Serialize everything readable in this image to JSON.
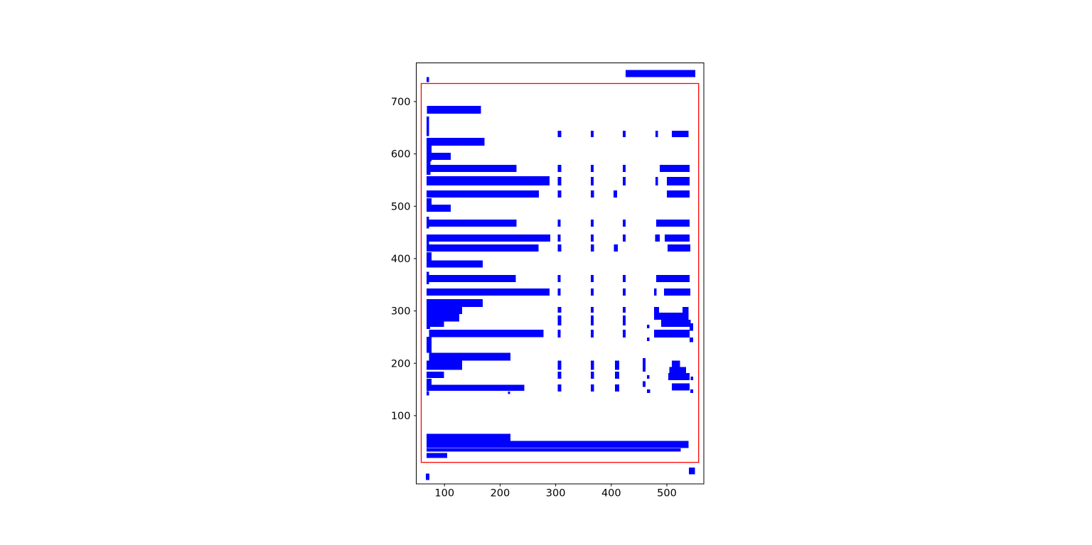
{
  "figure": {
    "background": "#ffffff",
    "bar_color": "#0000ff",
    "region_box_color": "#ff0000",
    "frame_color": "#000000",
    "tick_label_color": "#000000"
  },
  "chart_data": {
    "type": "rect",
    "description": "matplotlib-style plot of blue filled rectangles (layout bounding boxes) with one red unfilled region rectangle",
    "title": "",
    "xlabel": "",
    "ylabel": "",
    "grid": false,
    "legend": false,
    "xlim": [
      49.2,
      566.5
    ],
    "ylim": [
      -30.4,
      774.2
    ],
    "x_ticks": [
      100,
      200,
      300,
      400,
      500
    ],
    "y_ticks": [
      100,
      200,
      300,
      400,
      500,
      600,
      700
    ],
    "red_box": [
      58.1,
      10.8,
      557.1,
      734.6
    ],
    "blue_boxes": [
      [
        425.6,
        747.0,
        551.5,
        760.6
      ],
      [
        67.5,
        737.2,
        72.2,
        747.1
      ],
      [
        68.4,
        676.9,
        165.3,
        691.9
      ],
      [
        67.5,
        634.1,
        72.2,
        671.1
      ],
      [
        304.0,
        631.8,
        310.4,
        644.0
      ],
      [
        362.9,
        631.8,
        368.0,
        644.0
      ],
      [
        420.5,
        631.8,
        426.0,
        644.0
      ],
      [
        479.8,
        631.8,
        484.1,
        644.0
      ],
      [
        508.8,
        631.8,
        538.7,
        644.0
      ],
      [
        67.5,
        615.9,
        172.0,
        630.8
      ],
      [
        67.5,
        585.6,
        76.9,
        615.9
      ],
      [
        67.5,
        588.7,
        111.0,
        602.3
      ],
      [
        67.5,
        560.3,
        74.8,
        585.6
      ],
      [
        72.2,
        565.5,
        229.3,
        579.2
      ],
      [
        304.0,
        565.5,
        310.4,
        579.0
      ],
      [
        362.9,
        565.5,
        368.0,
        579.0
      ],
      [
        420.5,
        565.5,
        426.0,
        579.0
      ],
      [
        487.5,
        565.5,
        540.8,
        579.0
      ],
      [
        67.5,
        539.5,
        289.0,
        557.1
      ],
      [
        304.0,
        539.5,
        310.4,
        555.8
      ],
      [
        362.9,
        539.5,
        368.0,
        555.8
      ],
      [
        420.5,
        539.5,
        425.6,
        555.8
      ],
      [
        479.8,
        539.5,
        484.1,
        555.8
      ],
      [
        500.3,
        539.5,
        540.8,
        555.8
      ],
      [
        67.5,
        516.4,
        269.8,
        530.0
      ],
      [
        304.0,
        516.4,
        310.4,
        530.0
      ],
      [
        362.9,
        516.4,
        368.9,
        530.0
      ],
      [
        404.2,
        516.4,
        410.6,
        530.0
      ],
      [
        500.3,
        516.4,
        540.8,
        530.0
      ],
      [
        67.5,
        489.3,
        76.9,
        515.5
      ],
      [
        67.5,
        489.3,
        111.0,
        502.9
      ],
      [
        67.5,
        457.6,
        72.2,
        480.2
      ],
      [
        67.5,
        461.2,
        229.3,
        474.7
      ],
      [
        304.0,
        461.2,
        309.1,
        474.7
      ],
      [
        362.9,
        461.2,
        368.0,
        474.7
      ],
      [
        420.5,
        461.2,
        426.0,
        474.7
      ],
      [
        481.1,
        461.2,
        540.8,
        474.7
      ],
      [
        67.5,
        432.7,
        290.3,
        446.2
      ],
      [
        304.0,
        432.7,
        309.1,
        446.2
      ],
      [
        362.9,
        432.7,
        368.0,
        446.2
      ],
      [
        420.5,
        432.7,
        425.6,
        446.2
      ],
      [
        479.0,
        432.7,
        487.5,
        446.2
      ],
      [
        496.0,
        432.7,
        540.8,
        446.2
      ],
      [
        67.5,
        413.7,
        72.2,
        432.7
      ],
      [
        67.5,
        413.7,
        269.0,
        427.2
      ],
      [
        304.0,
        413.7,
        310.4,
        427.2
      ],
      [
        362.9,
        413.7,
        368.9,
        427.2
      ],
      [
        405.0,
        413.7,
        412.0,
        427.2
      ],
      [
        501.2,
        413.7,
        542.1,
        427.2
      ],
      [
        67.5,
        383.0,
        76.9,
        412.3
      ],
      [
        67.5,
        383.0,
        168.6,
        396.6
      ],
      [
        67.5,
        351.3,
        72.2,
        374.9
      ],
      [
        67.5,
        354.9,
        228.1,
        368.5
      ],
      [
        304.0,
        354.9,
        309.1,
        368.5
      ],
      [
        362.9,
        354.9,
        368.0,
        368.5
      ],
      [
        420.5,
        354.9,
        426.0,
        368.5
      ],
      [
        481.1,
        354.9,
        540.8,
        368.5
      ],
      [
        67.5,
        329.6,
        289.0,
        343.1
      ],
      [
        304.0,
        329.6,
        309.1,
        343.1
      ],
      [
        362.9,
        329.6,
        368.0,
        343.1
      ],
      [
        420.5,
        329.6,
        425.6,
        343.1
      ],
      [
        476.8,
        329.6,
        481.1,
        343.1
      ],
      [
        495.1,
        329.6,
        542.1,
        343.1
      ],
      [
        67.5,
        307.5,
        168.6,
        322.8
      ],
      [
        67.5,
        294.0,
        131.5,
        307.5
      ],
      [
        304.0,
        296.6,
        310.4,
        307.9
      ],
      [
        362.9,
        296.6,
        368.0,
        307.9
      ],
      [
        420.5,
        296.6,
        425.6,
        307.9
      ],
      [
        476.8,
        296.6,
        485.9,
        307.9
      ],
      [
        528.0,
        296.6,
        538.7,
        307.9
      ],
      [
        67.5,
        279.9,
        126.9,
        293.9
      ],
      [
        67.5,
        269.9,
        99.1,
        279.9
      ],
      [
        304.0,
        272.2,
        310.4,
        291.1
      ],
      [
        362.9,
        272.2,
        368.0,
        291.1
      ],
      [
        420.5,
        272.2,
        425.6,
        291.1
      ],
      [
        476.8,
        283.0,
        538.7,
        296.6
      ],
      [
        489.6,
        269.5,
        543.0,
        283.0
      ],
      [
        540.8,
        262.3,
        547.2,
        276.2
      ],
      [
        464.0,
        267.2,
        468.3,
        274.0
      ],
      [
        67.5,
        265.4,
        74.3,
        269.9
      ],
      [
        72.2,
        249.8,
        278.4,
        264.5
      ],
      [
        304.0,
        249.2,
        309.1,
        264.1
      ],
      [
        362.9,
        249.2,
        368.0,
        264.1
      ],
      [
        420.5,
        249.2,
        425.6,
        264.1
      ],
      [
        476.8,
        249.2,
        540.8,
        264.1
      ],
      [
        464.0,
        242.5,
        468.3,
        249.3
      ],
      [
        540.8,
        240.2,
        547.2,
        249.3
      ],
      [
        67.5,
        220.2,
        76.9,
        250.5
      ],
      [
        72.2,
        205.3,
        218.6,
        220.2
      ],
      [
        67.5,
        187.6,
        131.5,
        205.3
      ],
      [
        304.0,
        187.6,
        310.4,
        205.3
      ],
      [
        362.9,
        187.6,
        368.9,
        205.3
      ],
      [
        406.4,
        187.6,
        414.1,
        205.3
      ],
      [
        456.7,
        184.0,
        461.8,
        209.8
      ],
      [
        508.9,
        193.1,
        523.9,
        205.3
      ],
      [
        504.6,
        181.7,
        534.4,
        193.1
      ],
      [
        502.4,
        168.1,
        540.8,
        181.7
      ],
      [
        67.5,
        171.8,
        99.1,
        184.0
      ],
      [
        304.0,
        170.4,
        310.4,
        184.0
      ],
      [
        362.9,
        170.4,
        368.9,
        184.0
      ],
      [
        406.4,
        170.4,
        414.1,
        184.0
      ],
      [
        464.0,
        170.4,
        468.3,
        177.2
      ],
      [
        542.9,
        168.1,
        547.2,
        174.9
      ],
      [
        67.5,
        159.2,
        76.9,
        170.4
      ],
      [
        67.5,
        147.1,
        243.4,
        159.2
      ],
      [
        304.0,
        146.1,
        310.4,
        159.6
      ],
      [
        362.9,
        146.1,
        368.9,
        159.6
      ],
      [
        406.4,
        146.1,
        414.1,
        159.6
      ],
      [
        456.7,
        154.6,
        461.8,
        166.0
      ],
      [
        508.9,
        147.8,
        540.8,
        161.4
      ],
      [
        464.0,
        143.2,
        469.6,
        150.2
      ],
      [
        542.1,
        143.2,
        547.2,
        150.2
      ],
      [
        67.5,
        138.9,
        72.2,
        147.0
      ],
      [
        214.3,
        141.2,
        217.8,
        145.8
      ],
      [
        67.5,
        51.4,
        218.6,
        65.0
      ],
      [
        67.5,
        37.8,
        538.7,
        51.4
      ],
      [
        67.5,
        31.6,
        525.1,
        37.8
      ],
      [
        67.5,
        18.8,
        104.6,
        28.9
      ],
      [
        539.5,
        -11.8,
        550.6,
        0.8
      ],
      [
        66.7,
        -22.6,
        72.6,
        -10.4
      ]
    ]
  }
}
